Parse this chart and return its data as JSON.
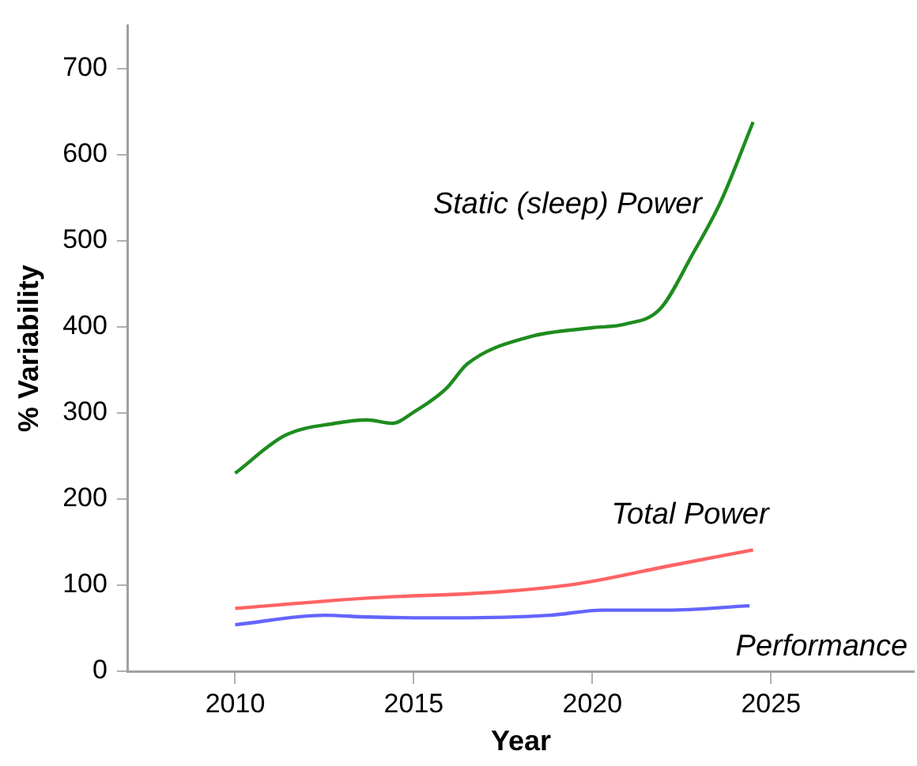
{
  "chart_data": {
    "type": "line",
    "xlabel": "Year",
    "ylabel": "% Variability",
    "xlim": [
      2007,
      2029
    ],
    "xticks": [
      2010,
      2015,
      2020,
      2025
    ],
    "ylim": [
      0,
      750
    ],
    "yticks": [
      0,
      100,
      200,
      300,
      400,
      500,
      600,
      700
    ],
    "grid": false,
    "legend": false,
    "marker": "none",
    "line_style": "solid",
    "series": [
      {
        "name": "Static (sleep) Power",
        "color": "#1e8c1e",
        "x": [
          2010,
          2011.4,
          2012.8,
          2013.7,
          2014.4,
          2015.0,
          2015.9,
          2016.5,
          2018.2,
          2020.0,
          2020.9,
          2021.9,
          2022.8,
          2023.6,
          2024.5
        ],
        "values": [
          230,
          274,
          288,
          292,
          288,
          301,
          328,
          357,
          388,
          399,
          403,
          421,
          484,
          546,
          638
        ]
      },
      {
        "name": "Total Power",
        "color": "#ff6464",
        "x": [
          2010,
          2013.7,
          2017.3,
          2019.5,
          2022.1,
          2024.5
        ],
        "values": [
          73,
          85,
          92,
          101,
          122,
          141
        ]
      },
      {
        "name": "Performance",
        "color": "#6464ff",
        "x": [
          2010,
          2012.5,
          2013.7,
          2016.1,
          2018.8,
          2020.3,
          2022.1,
          2024.4
        ],
        "values": [
          54,
          65,
          63,
          62,
          65,
          71,
          71,
          76
        ]
      }
    ]
  }
}
